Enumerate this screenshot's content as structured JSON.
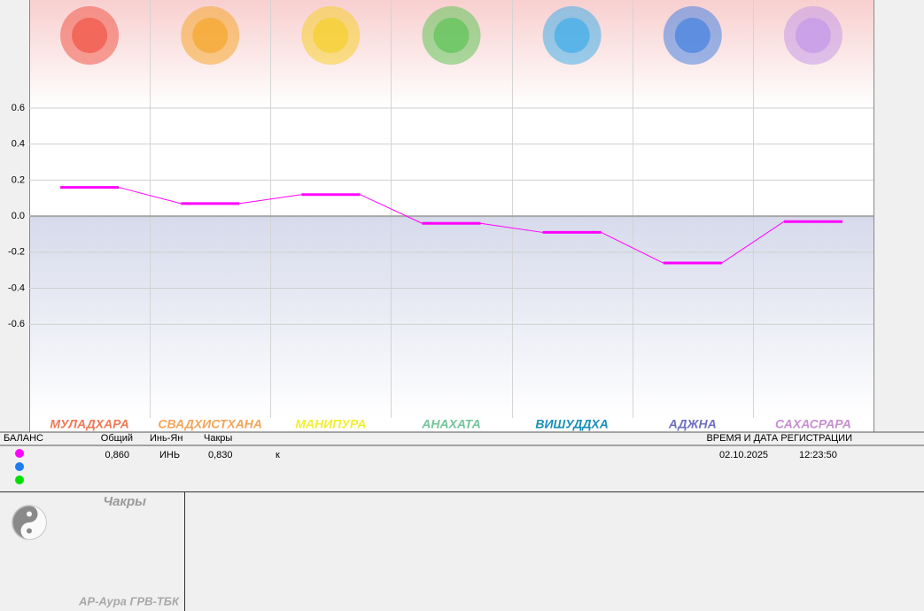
{
  "chart_data": {
    "type": "line",
    "categories": [
      "МУЛАДХАРА",
      "СВАДХИСТХАНА",
      "МАНИПУРА",
      "АНАХАТА",
      "ВИШУДДХА",
      "АДЖНА",
      "САХАСРАРА"
    ],
    "category_colors": [
      "#f07a55",
      "#f2a65a",
      "#f4ee30",
      "#74c49a",
      "#1a8fb8",
      "#6f6fc2",
      "#c88fd2"
    ],
    "icon_colors": [
      "#f05a4a",
      "#f5a830",
      "#f5d030",
      "#62c45a",
      "#46aee8",
      "#4a84e0",
      "#c49ae8"
    ],
    "series": [
      {
        "color": "#ff00ff",
        "values": [
          0.16,
          0.07,
          0.12,
          -0.04,
          -0.09,
          -0.26,
          -0.03
        ]
      }
    ],
    "ylim": [
      -1.12,
      1.19
    ],
    "yticks": [
      0.6,
      0.4,
      0.2,
      {
        "value": 0,
        "label": "0.0"
      },
      -0.2,
      -0.4,
      -0.6
    ],
    "grid": true
  },
  "info_table": {
    "headers": [
      "БАЛАНС",
      "Общий",
      "Инь-Ян",
      "Чакры",
      "ВРЕМЯ И ДАТА РЕГИСТРАЦИИ"
    ],
    "row": [
      "0,860",
      "ИНЬ",
      "0,830",
      "к",
      "02.10.2025",
      "12:23:50"
    ],
    "dot_colors": [
      "#ff00ff",
      "#1e7cf0",
      "#00e000"
    ]
  },
  "panel": {
    "title": "Чакры",
    "footer": "АР-Аура ГРВ-ТБК"
  }
}
